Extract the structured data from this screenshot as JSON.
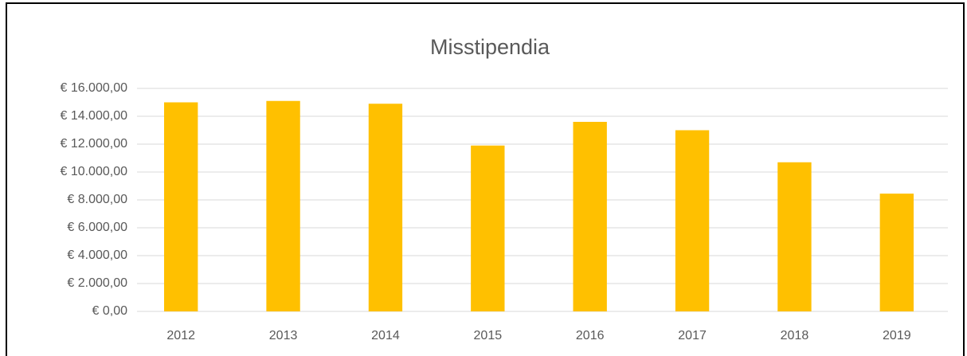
{
  "chart_data": {
    "type": "bar",
    "title": "Misstipendia",
    "categories": [
      "2012",
      "2013",
      "2014",
      "2015",
      "2016",
      "2017",
      "2018",
      "2019"
    ],
    "values": [
      15000,
      15100,
      14900,
      11900,
      13600,
      13000,
      10700,
      8450
    ],
    "color": "#ffc000",
    "ylim": [
      0,
      16000
    ],
    "yticks": [
      {
        "value": 0,
        "label": "€ 0,00"
      },
      {
        "value": 2000,
        "label": "€ 2.000,00"
      },
      {
        "value": 4000,
        "label": "€ 4.000,00"
      },
      {
        "value": 6000,
        "label": "€ 6.000,00"
      },
      {
        "value": 8000,
        "label": "€ 8.000,00"
      },
      {
        "value": 10000,
        "label": "€ 10.000,00"
      },
      {
        "value": 12000,
        "label": "€ 12.000,00"
      },
      {
        "value": 14000,
        "label": "€ 14.000,00"
      },
      {
        "value": 16000,
        "label": "€ 16.000,00"
      }
    ],
    "grid": true
  }
}
